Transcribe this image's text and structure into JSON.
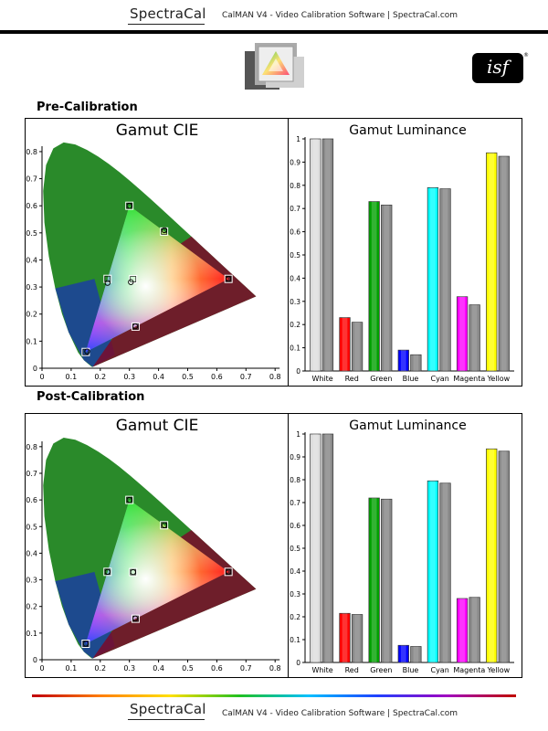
{
  "header": {
    "brand": "SpectraCal",
    "tagline": "CalMAN V4 - Video Calibration Software | SpectraCal.com"
  },
  "footer": {
    "brand": "SpectraCal",
    "tagline": "CalMAN V4 - Video Calibration Software | SpectraCal.com"
  },
  "isf_logo": {
    "text": "isf",
    "reg": "®"
  },
  "colors": {
    "white": "#dcdcdc",
    "red": "#ff0000",
    "green": "#00a000",
    "blue": "#0000ff",
    "cyan": "#00ffff",
    "magenta": "#ff00ff",
    "yellow": "#ffff00",
    "reference_bar": "#8a8a8a"
  },
  "sections": [
    {
      "title": "Pre-Calibration",
      "cie": {
        "title": "Gamut CIE",
        "x_ticks": [
          "0",
          "0.1",
          "0.2",
          "0.3",
          "0.4",
          "0.5",
          "0.6",
          "0.7",
          "0.8"
        ],
        "y_ticks": [
          "0",
          "0.1",
          "0.2",
          "0.3",
          "0.4",
          "0.5",
          "0.6",
          "0.7",
          "0.8"
        ],
        "targets": [
          [
            0.64,
            0.33
          ],
          [
            0.3,
            0.6
          ],
          [
            0.15,
            0.06
          ],
          [
            0.225,
            0.33
          ],
          [
            0.321,
            0.154
          ],
          [
            0.419,
            0.505
          ],
          [
            0.3127,
            0.329
          ]
        ],
        "measured": [
          [
            0.64,
            0.33
          ],
          [
            0.3,
            0.6
          ],
          [
            0.155,
            0.062
          ],
          [
            0.225,
            0.315
          ],
          [
            0.32,
            0.155
          ],
          [
            0.42,
            0.51
          ],
          [
            0.305,
            0.318
          ]
        ]
      },
      "luminance": {
        "title": "Gamut Luminance",
        "categories": [
          "White",
          "Red",
          "Green",
          "Blue",
          "Cyan",
          "Magenta",
          "Yellow"
        ],
        "y_ticks": [
          "0",
          "0.1",
          "0.2",
          "0.3",
          "0.4",
          "0.5",
          "0.6",
          "0.7",
          "0.8",
          "0.9",
          "1"
        ],
        "measured": [
          1.0,
          0.23,
          0.73,
          0.09,
          0.79,
          0.32,
          0.94
        ],
        "target": [
          1.0,
          0.21,
          0.715,
          0.07,
          0.785,
          0.285,
          0.925
        ]
      }
    },
    {
      "title": "Post-Calibration",
      "cie": {
        "title": "Gamut CIE",
        "x_ticks": [
          "0",
          "0.1",
          "0.2",
          "0.3",
          "0.4",
          "0.5",
          "0.6",
          "0.7",
          "0.8"
        ],
        "y_ticks": [
          "0",
          "0.1",
          "0.2",
          "0.3",
          "0.4",
          "0.5",
          "0.6",
          "0.7",
          "0.8"
        ],
        "targets": [
          [
            0.64,
            0.33
          ],
          [
            0.3,
            0.6
          ],
          [
            0.15,
            0.06
          ],
          [
            0.225,
            0.33
          ],
          [
            0.321,
            0.154
          ],
          [
            0.419,
            0.505
          ],
          [
            0.3127,
            0.329
          ]
        ],
        "measured": [
          [
            0.64,
            0.33
          ],
          [
            0.3,
            0.6
          ],
          [
            0.15,
            0.06
          ],
          [
            0.225,
            0.33
          ],
          [
            0.32,
            0.155
          ],
          [
            0.42,
            0.505
          ],
          [
            0.3127,
            0.329
          ]
        ]
      },
      "luminance": {
        "title": "Gamut Luminance",
        "categories": [
          "White",
          "Red",
          "Green",
          "Blue",
          "Cyan",
          "Magenta",
          "Yellow"
        ],
        "y_ticks": [
          "0",
          "0.1",
          "0.2",
          "0.3",
          "0.4",
          "0.5",
          "0.6",
          "0.7",
          "0.8",
          "0.9",
          "1"
        ],
        "measured": [
          1.0,
          0.215,
          0.72,
          0.075,
          0.795,
          0.28,
          0.935
        ],
        "target": [
          1.0,
          0.21,
          0.715,
          0.07,
          0.785,
          0.285,
          0.925
        ]
      }
    }
  ]
}
